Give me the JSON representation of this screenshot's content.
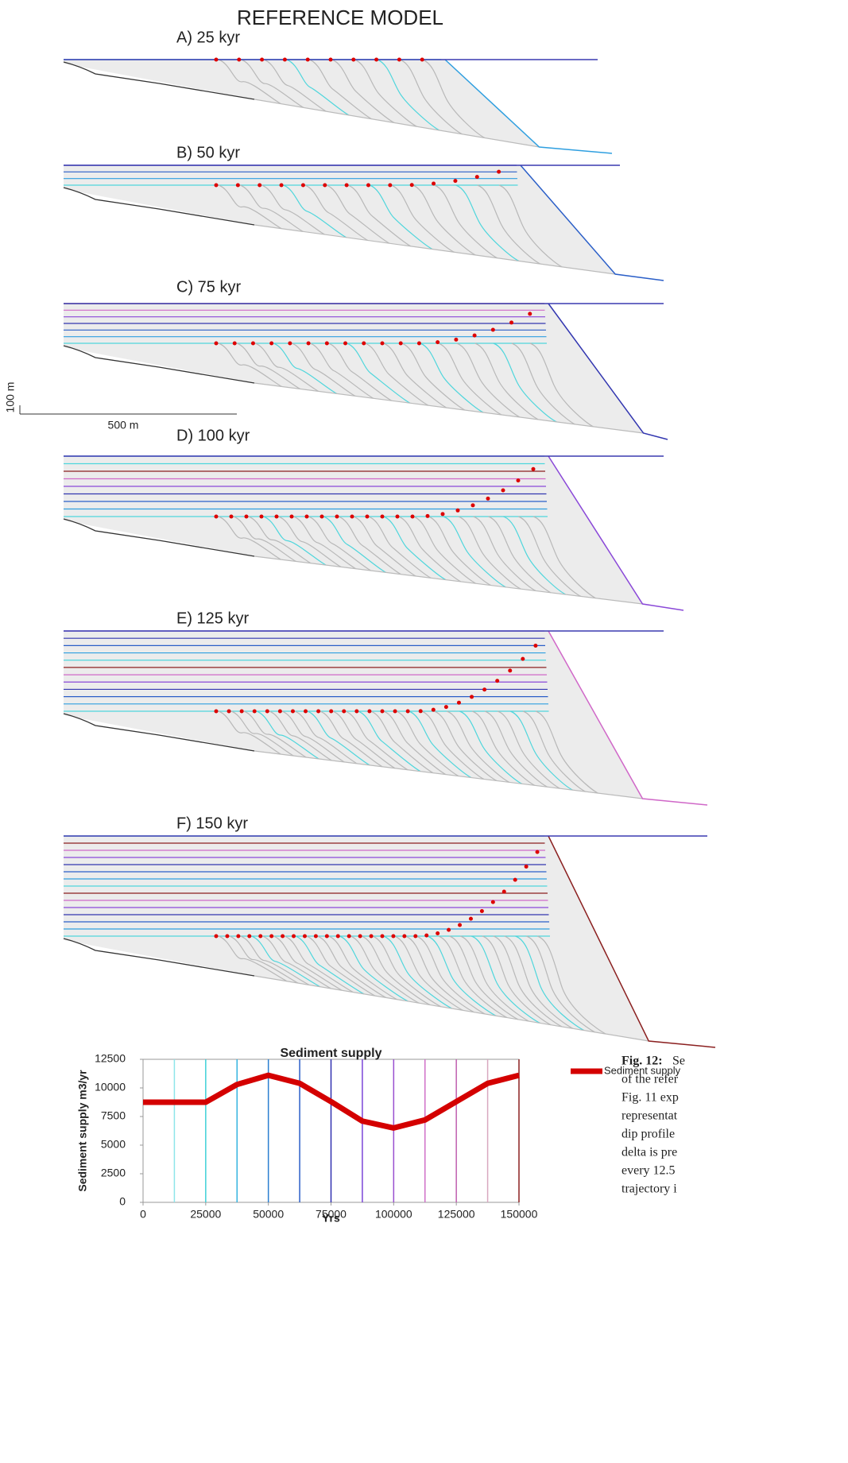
{
  "header": {
    "title": "REFERENCE MODEL"
  },
  "panels": [
    {
      "label": "A) 25 kyr"
    },
    {
      "label": "B) 50 kyr"
    },
    {
      "label": "C) 75 kyr"
    },
    {
      "label": "D) 100 kyr"
    },
    {
      "label": "E) 125 kyr"
    },
    {
      "label": "F) 150 kyr"
    }
  ],
  "scale_bar": {
    "vertical": "100 m",
    "horizontal": "500 m"
  },
  "chart_data": {
    "type": "line",
    "title": "Sediment supply",
    "x_label": "Yrs",
    "y_label": "Sediment supply m3/yr",
    "x": [
      0,
      12500,
      25000,
      37500,
      50000,
      62500,
      75000,
      87500,
      100000,
      112500,
      125000,
      137500,
      150000
    ],
    "series": [
      {
        "name": "Sediment supply",
        "color": "#d40000",
        "values": [
          8750,
          8750,
          8750,
          10300,
          11100,
          10400,
          8800,
          7100,
          6500,
          7200,
          8800,
          10400,
          11100
        ]
      }
    ],
    "markers": {
      "x": [
        12500,
        25000,
        37500,
        50000,
        62500,
        75000,
        87500,
        100000,
        112500,
        125000,
        137500,
        150000
      ],
      "colors": [
        "#8ee6ea",
        "#3fd0d8",
        "#36b4e0",
        "#2a7fd0",
        "#2a5ec8",
        "#3030b0",
        "#7a44d8",
        "#9a50d0",
        "#d070c8",
        "#c060b0",
        "#d8a8c0",
        "#8b2020"
      ]
    },
    "xlim": [
      0,
      150000
    ],
    "xticks": [
      0,
      25000,
      50000,
      75000,
      100000,
      125000,
      150000
    ],
    "ylim": [
      0,
      12500
    ],
    "yticks": [
      0,
      2500,
      5000,
      7500,
      10000,
      12500
    ],
    "grid": false,
    "legend": "right"
  },
  "caption": {
    "label": "Fig. 12:",
    "lines": [
      "Se",
      "of the refer",
      "Fig. 11 exp",
      "representat",
      "dip profile",
      "delta is pre",
      "every 12.5",
      "trajectory i"
    ]
  }
}
